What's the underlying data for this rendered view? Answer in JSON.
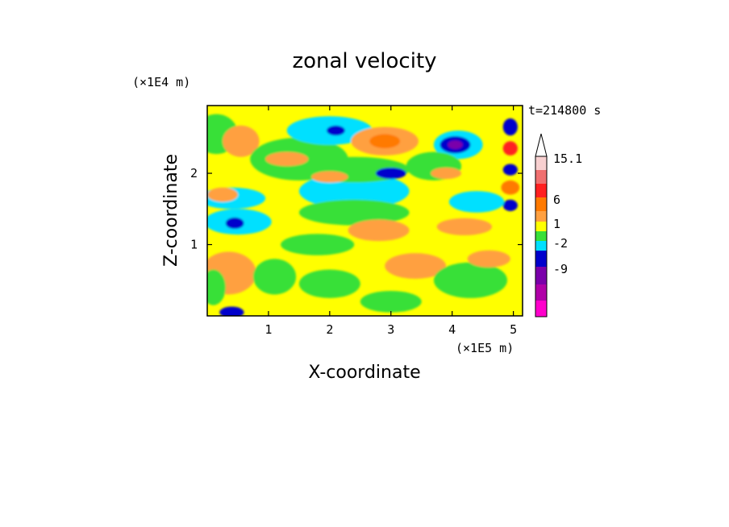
{
  "chart_data": {
    "type": "heatmap",
    "title": "zonal velocity",
    "xlabel": "X-coordinate",
    "ylabel": "Z-coordinate",
    "x_multiplier": "(×1E5 m)",
    "y_multiplier": "(×1E4 m)",
    "time_label": "t=214800 s",
    "xlim": [
      0,
      5.15
    ],
    "ylim": [
      0,
      2.95
    ],
    "x_ticks": [
      1,
      2,
      3,
      4,
      5
    ],
    "x_tick_labels": [
      "1",
      "2",
      "3",
      "4",
      "5"
    ],
    "y_ticks": [
      1,
      2
    ],
    "y_tick_labels": [
      "1",
      "2"
    ],
    "colorbar": {
      "levels_top_to_bottom": [
        {
          "color": "#f8d0d0",
          "label": "15.1"
        },
        {
          "color": "#f07070",
          "label": ""
        },
        {
          "color": "#ff2020",
          "label": ""
        },
        {
          "color": "#ff7a00",
          "label": "6"
        },
        {
          "color": "#ffa040",
          "label": ""
        },
        {
          "color": "#ffff00",
          "label": "1"
        },
        {
          "color": "#38e038",
          "label": ""
        },
        {
          "color": "#00e0ff",
          "label": "-2"
        },
        {
          "color": "#0000cc",
          "label": ""
        },
        {
          "color": "#7a00aa",
          "label": "-9"
        },
        {
          "color": "#b000a8",
          "label": ""
        },
        {
          "color": "#ff00cc",
          "label": ""
        }
      ]
    },
    "field_background": "#ffff00",
    "blobs": [
      {
        "x": 0.15,
        "z": 2.55,
        "rx": 0.35,
        "rz": 0.28,
        "level": "#38e038"
      },
      {
        "x": 0.55,
        "z": 2.45,
        "rx": 0.3,
        "rz": 0.22,
        "level": "#ffa040"
      },
      {
        "x": 0.4,
        "z": 1.65,
        "rx": 0.55,
        "rz": 0.15,
        "level": "#00e0ff"
      },
      {
        "x": 0.5,
        "z": 1.32,
        "rx": 0.55,
        "rz": 0.18,
        "level": "#00e0ff"
      },
      {
        "x": 0.45,
        "z": 1.3,
        "rx": 0.15,
        "rz": 0.08,
        "level": "#0000cc"
      },
      {
        "x": 0.25,
        "z": 1.7,
        "rx": 0.25,
        "rz": 0.1,
        "level": "#ffa040"
      },
      {
        "x": 0.35,
        "z": 0.6,
        "rx": 0.45,
        "rz": 0.3,
        "level": "#ffa040"
      },
      {
        "x": 0.1,
        "z": 0.4,
        "rx": 0.2,
        "rz": 0.25,
        "level": "#38e038"
      },
      {
        "x": 1.5,
        "z": 2.2,
        "rx": 0.8,
        "rz": 0.3,
        "level": "#38e038"
      },
      {
        "x": 1.3,
        "z": 2.2,
        "rx": 0.35,
        "rz": 0.1,
        "level": "#ffa040"
      },
      {
        "x": 2.0,
        "z": 2.6,
        "rx": 0.7,
        "rz": 0.2,
        "level": "#00e0ff"
      },
      {
        "x": 2.1,
        "z": 2.6,
        "rx": 0.15,
        "rz": 0.07,
        "level": "#0000cc"
      },
      {
        "x": 2.9,
        "z": 2.45,
        "rx": 0.55,
        "rz": 0.2,
        "level": "#ffa040"
      },
      {
        "x": 2.9,
        "z": 2.45,
        "rx": 0.25,
        "rz": 0.1,
        "level": "#ff7a00"
      },
      {
        "x": 2.4,
        "z": 1.75,
        "rx": 0.9,
        "rz": 0.25,
        "level": "#00e0ff"
      },
      {
        "x": 2.4,
        "z": 2.05,
        "rx": 0.9,
        "rz": 0.18,
        "level": "#38e038"
      },
      {
        "x": 2.4,
        "z": 1.45,
        "rx": 0.9,
        "rz": 0.18,
        "level": "#38e038"
      },
      {
        "x": 3.0,
        "z": 2.0,
        "rx": 0.25,
        "rz": 0.08,
        "level": "#0000cc"
      },
      {
        "x": 2.0,
        "z": 1.95,
        "rx": 0.3,
        "rz": 0.08,
        "level": "#ffa040"
      },
      {
        "x": 4.1,
        "z": 2.4,
        "rx": 0.4,
        "rz": 0.2,
        "level": "#00e0ff"
      },
      {
        "x": 4.05,
        "z": 2.4,
        "rx": 0.25,
        "rz": 0.12,
        "level": "#0000cc"
      },
      {
        "x": 4.05,
        "z": 2.4,
        "rx": 0.12,
        "rz": 0.06,
        "level": "#7a00aa"
      },
      {
        "x": 3.7,
        "z": 2.1,
        "rx": 0.45,
        "rz": 0.2,
        "level": "#38e038"
      },
      {
        "x": 3.9,
        "z": 2.0,
        "rx": 0.25,
        "rz": 0.08,
        "level": "#ffa040"
      },
      {
        "x": 4.95,
        "z": 2.65,
        "rx": 0.12,
        "rz": 0.12,
        "level": "#0000cc"
      },
      {
        "x": 4.95,
        "z": 2.35,
        "rx": 0.12,
        "rz": 0.1,
        "level": "#ff2020"
      },
      {
        "x": 4.95,
        "z": 2.05,
        "rx": 0.12,
        "rz": 0.08,
        "level": "#0000cc"
      },
      {
        "x": 4.95,
        "z": 1.8,
        "rx": 0.15,
        "rz": 0.1,
        "level": "#ff7a00"
      },
      {
        "x": 4.95,
        "z": 1.55,
        "rx": 0.12,
        "rz": 0.08,
        "level": "#0000cc"
      },
      {
        "x": 4.4,
        "z": 1.6,
        "rx": 0.45,
        "rz": 0.15,
        "level": "#00e0ff"
      },
      {
        "x": 1.8,
        "z": 1.0,
        "rx": 0.6,
        "rz": 0.15,
        "level": "#38e038"
      },
      {
        "x": 2.8,
        "z": 1.2,
        "rx": 0.5,
        "rz": 0.15,
        "level": "#ffa040"
      },
      {
        "x": 4.2,
        "z": 1.25,
        "rx": 0.45,
        "rz": 0.12,
        "level": "#ffa040"
      },
      {
        "x": 3.4,
        "z": 0.7,
        "rx": 0.5,
        "rz": 0.18,
        "level": "#ffa040"
      },
      {
        "x": 1.1,
        "z": 0.55,
        "rx": 0.35,
        "rz": 0.25,
        "level": "#38e038"
      },
      {
        "x": 2.0,
        "z": 0.45,
        "rx": 0.5,
        "rz": 0.2,
        "level": "#38e038"
      },
      {
        "x": 4.3,
        "z": 0.5,
        "rx": 0.6,
        "rz": 0.25,
        "level": "#38e038"
      },
      {
        "x": 3.0,
        "z": 0.2,
        "rx": 0.5,
        "rz": 0.15,
        "level": "#38e038"
      },
      {
        "x": 4.6,
        "z": 0.8,
        "rx": 0.35,
        "rz": 0.12,
        "level": "#ffa040"
      },
      {
        "x": 0.4,
        "z": 0.05,
        "rx": 0.2,
        "rz": 0.08,
        "level": "#0000cc"
      }
    ]
  }
}
